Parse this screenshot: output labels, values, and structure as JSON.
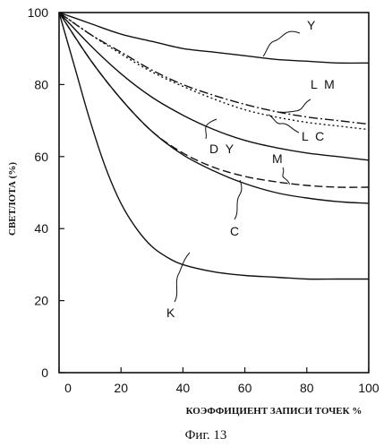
{
  "chart_data": {
    "type": "line",
    "title": "",
    "xlabel": "КОЭФФИЦИЕНТ ЗАПИСИ ТОЧЕК  %",
    "ylabel": "СВЕТЛОТА (%)",
    "caption": "Фиг. 13",
    "xlim": [
      0,
      100
    ],
    "ylim": [
      0,
      100
    ],
    "x_ticks": [
      0,
      20,
      40,
      60,
      80,
      100
    ],
    "y_ticks": [
      0,
      20,
      40,
      60,
      80,
      100
    ],
    "x_tick_labels": [
      "0",
      "20",
      "40",
      "60",
      "80",
      "100"
    ],
    "y_tick_labels": [
      "0",
      "20",
      "40",
      "60",
      "80",
      "100"
    ],
    "grid": false,
    "legend": "inline labels",
    "series": [
      {
        "name": "Y",
        "style": "solid",
        "x": [
          0,
          10,
          20,
          30,
          40,
          50,
          60,
          70,
          80,
          90,
          100
        ],
        "y": [
          100,
          97,
          94,
          92,
          90,
          89,
          88,
          87,
          86.5,
          86,
          86
        ]
      },
      {
        "name": "LM",
        "style": "dashdot",
        "x": [
          0,
          10,
          20,
          30,
          40,
          50,
          60,
          70,
          80,
          90,
          100
        ],
        "y": [
          100,
          94,
          89,
          84,
          80,
          77,
          74.5,
          72.5,
          71,
          70,
          69
        ]
      },
      {
        "name": "LC",
        "style": "dotted",
        "x": [
          0,
          10,
          20,
          30,
          40,
          50,
          60,
          70,
          80,
          90,
          100
        ],
        "y": [
          100,
          94,
          88.5,
          83.5,
          79.5,
          76,
          73,
          71,
          69.5,
          68.5,
          67.5
        ]
      },
      {
        "name": "DY",
        "style": "solid",
        "x": [
          0,
          10,
          20,
          30,
          40,
          50,
          60,
          70,
          80,
          90,
          100
        ],
        "y": [
          100,
          91,
          83,
          76.5,
          71.5,
          67.5,
          64.5,
          62.5,
          61,
          60,
          59
        ]
      },
      {
        "name": "M",
        "style": "dashed",
        "x": [
          0,
          10,
          20,
          30,
          40,
          50,
          60,
          70,
          80,
          90,
          100
        ],
        "y": [
          100,
          87,
          76,
          67,
          61,
          57,
          54.5,
          53,
          52,
          51.5,
          51.5
        ]
      },
      {
        "name": "C",
        "style": "solid",
        "x": [
          0,
          10,
          20,
          30,
          40,
          50,
          60,
          70,
          80,
          90,
          100
        ],
        "y": [
          100,
          87,
          76,
          67,
          60.5,
          56,
          52.5,
          50,
          48.5,
          47.5,
          47
        ]
      },
      {
        "name": "K",
        "style": "solid",
        "x": [
          0,
          5,
          10,
          15,
          20,
          25,
          30,
          35,
          40,
          50,
          60,
          70,
          80,
          90,
          100
        ],
        "y": [
          100,
          85,
          70,
          57,
          47,
          40,
          35,
          32,
          30,
          28,
          27,
          26.5,
          26,
          26,
          26
        ]
      }
    ]
  }
}
